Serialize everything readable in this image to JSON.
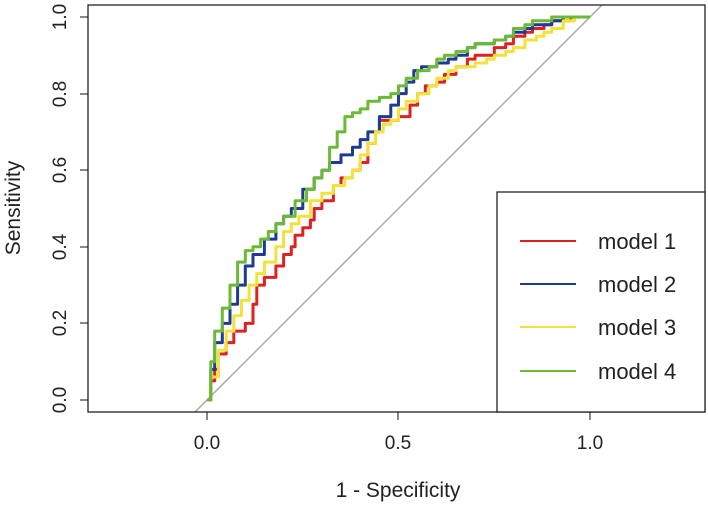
{
  "chart_data": {
    "type": "line",
    "title": "",
    "xlabel": "1 - Specificity",
    "ylabel": "Sensitivity",
    "xlim": [
      -0.3,
      1.3
    ],
    "ylim": [
      -0.02,
      1.02
    ],
    "xticks": [
      "0.0",
      "0.5",
      "1.0"
    ],
    "yticks": [
      "0.0",
      "0.2",
      "0.4",
      "0.6",
      "0.8",
      "1.0"
    ],
    "legend_position": "bottom-right",
    "reference_line": {
      "x": [
        -0.04,
        1.04
      ],
      "y": [
        -0.04,
        1.04
      ],
      "color": "#aaaaaa"
    },
    "series": [
      {
        "name": "model 1",
        "color": "#dd2222",
        "x": [
          0.0,
          0.01,
          0.02,
          0.03,
          0.05,
          0.07,
          0.08,
          0.1,
          0.12,
          0.13,
          0.15,
          0.18,
          0.2,
          0.22,
          0.23,
          0.25,
          0.27,
          0.28,
          0.3,
          0.33,
          0.35,
          0.38,
          0.4,
          0.42,
          0.44,
          0.45,
          0.47,
          0.5,
          0.53,
          0.55,
          0.57,
          0.6,
          0.62,
          0.65,
          0.68,
          0.7,
          0.73,
          0.75,
          0.78,
          0.8,
          0.83,
          0.85,
          0.88,
          0.9,
          0.93,
          0.95,
          1.0
        ],
        "y": [
          0.0,
          0.05,
          0.08,
          0.12,
          0.15,
          0.18,
          0.18,
          0.2,
          0.25,
          0.3,
          0.32,
          0.35,
          0.38,
          0.4,
          0.43,
          0.45,
          0.47,
          0.5,
          0.52,
          0.56,
          0.58,
          0.6,
          0.62,
          0.67,
          0.7,
          0.73,
          0.73,
          0.74,
          0.77,
          0.8,
          0.82,
          0.83,
          0.85,
          0.87,
          0.89,
          0.9,
          0.9,
          0.92,
          0.93,
          0.95,
          0.96,
          0.97,
          0.98,
          0.99,
          0.99,
          1.0,
          1.0
        ]
      },
      {
        "name": "model 2",
        "color": "#1f3a93",
        "x": [
          0.0,
          0.01,
          0.02,
          0.04,
          0.06,
          0.08,
          0.1,
          0.12,
          0.15,
          0.18,
          0.2,
          0.22,
          0.25,
          0.28,
          0.3,
          0.32,
          0.35,
          0.38,
          0.4,
          0.42,
          0.45,
          0.48,
          0.5,
          0.52,
          0.54,
          0.56,
          0.58,
          0.6,
          0.63,
          0.65,
          0.68,
          0.7,
          0.72,
          0.75,
          0.78,
          0.8,
          0.83,
          0.85,
          0.88,
          0.9,
          0.93,
          0.96,
          1.0
        ],
        "y": [
          0.0,
          0.08,
          0.15,
          0.2,
          0.25,
          0.3,
          0.35,
          0.38,
          0.42,
          0.46,
          0.48,
          0.5,
          0.55,
          0.58,
          0.6,
          0.62,
          0.64,
          0.66,
          0.68,
          0.7,
          0.74,
          0.77,
          0.8,
          0.83,
          0.86,
          0.87,
          0.87,
          0.88,
          0.89,
          0.9,
          0.92,
          0.93,
          0.93,
          0.94,
          0.95,
          0.96,
          0.97,
          0.98,
          0.98,
          0.99,
          1.0,
          1.0,
          1.0
        ]
      },
      {
        "name": "model 3",
        "color": "#f2e33a",
        "x": [
          0.0,
          0.01,
          0.03,
          0.05,
          0.07,
          0.09,
          0.11,
          0.13,
          0.15,
          0.18,
          0.2,
          0.22,
          0.24,
          0.27,
          0.3,
          0.33,
          0.36,
          0.38,
          0.4,
          0.42,
          0.44,
          0.46,
          0.48,
          0.5,
          0.52,
          0.55,
          0.58,
          0.6,
          0.63,
          0.65,
          0.68,
          0.7,
          0.73,
          0.75,
          0.78,
          0.8,
          0.83,
          0.86,
          0.88,
          0.9,
          0.93,
          0.96,
          1.0
        ],
        "y": [
          0.0,
          0.06,
          0.13,
          0.18,
          0.22,
          0.26,
          0.3,
          0.33,
          0.36,
          0.4,
          0.44,
          0.46,
          0.48,
          0.52,
          0.54,
          0.56,
          0.58,
          0.6,
          0.64,
          0.67,
          0.7,
          0.72,
          0.73,
          0.76,
          0.78,
          0.8,
          0.82,
          0.84,
          0.86,
          0.87,
          0.87,
          0.88,
          0.89,
          0.9,
          0.91,
          0.92,
          0.94,
          0.95,
          0.96,
          0.97,
          0.99,
          1.0,
          1.0
        ]
      },
      {
        "name": "model 4",
        "color": "#6cb935",
        "x": [
          0.0,
          0.01,
          0.02,
          0.04,
          0.06,
          0.08,
          0.1,
          0.12,
          0.14,
          0.16,
          0.18,
          0.2,
          0.23,
          0.26,
          0.28,
          0.3,
          0.32,
          0.34,
          0.36,
          0.38,
          0.4,
          0.42,
          0.45,
          0.48,
          0.5,
          0.52,
          0.55,
          0.58,
          0.6,
          0.62,
          0.65,
          0.68,
          0.7,
          0.73,
          0.75,
          0.78,
          0.8,
          0.83,
          0.85,
          0.88,
          0.9,
          0.93,
          0.96,
          1.0
        ],
        "y": [
          0.0,
          0.1,
          0.18,
          0.24,
          0.3,
          0.36,
          0.39,
          0.4,
          0.42,
          0.44,
          0.46,
          0.48,
          0.52,
          0.55,
          0.58,
          0.6,
          0.66,
          0.7,
          0.74,
          0.75,
          0.76,
          0.78,
          0.79,
          0.8,
          0.82,
          0.84,
          0.86,
          0.87,
          0.89,
          0.9,
          0.91,
          0.92,
          0.93,
          0.93,
          0.94,
          0.95,
          0.97,
          0.98,
          0.99,
          0.99,
          1.0,
          1.0,
          1.0,
          1.0
        ]
      }
    ]
  }
}
